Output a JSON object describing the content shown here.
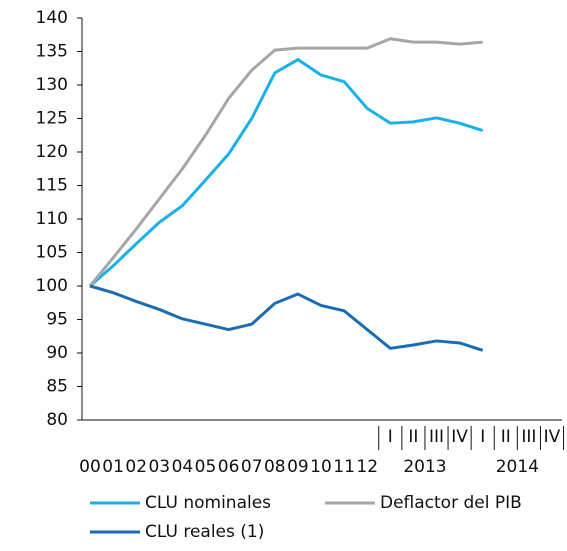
{
  "chart_data": {
    "type": "line",
    "categories": [
      "00",
      "01",
      "02",
      "03",
      "04",
      "05",
      "06",
      "07",
      "08",
      "09",
      "10",
      "11",
      "12",
      "I",
      "II",
      "III",
      "IV",
      "I",
      "II",
      "III",
      "IV"
    ],
    "category_groups": [
      {
        "label": "2013",
        "span": 4
      },
      {
        "label": "2014",
        "span": 4
      }
    ],
    "series": [
      {
        "name": "CLU nominales",
        "color": "#1ab0e8",
        "values": [
          100,
          103,
          106.3,
          109.5,
          112,
          115.8,
          119.7,
          125,
          131.8,
          133.8,
          131.5,
          130.5,
          126.5,
          124.3,
          124.5,
          125.1,
          124.3,
          123.2,
          null,
          null,
          null
        ]
      },
      {
        "name": "Deflactor del PIB",
        "color": "#a6a6a6",
        "values": [
          100,
          104.2,
          108.5,
          113,
          117.5,
          122.5,
          128,
          132.2,
          135.2,
          135.5,
          135.5,
          135.5,
          135.5,
          136.9,
          136.4,
          136.4,
          136.1,
          136.4,
          null,
          null,
          null
        ]
      },
      {
        "name": "CLU reales (1)",
        "color": "#1a6db5",
        "values": [
          100,
          99,
          97.7,
          96.5,
          95.1,
          94.3,
          93.5,
          94.3,
          97.4,
          98.8,
          97.1,
          96.3,
          93.5,
          90.7,
          91.2,
          91.8,
          91.5,
          90.4,
          null,
          null,
          null
        ]
      }
    ],
    "ylim": [
      80,
      140
    ],
    "yticks": [
      80,
      85,
      90,
      95,
      100,
      105,
      110,
      115,
      120,
      125,
      130,
      135,
      140
    ],
    "grid": false
  }
}
